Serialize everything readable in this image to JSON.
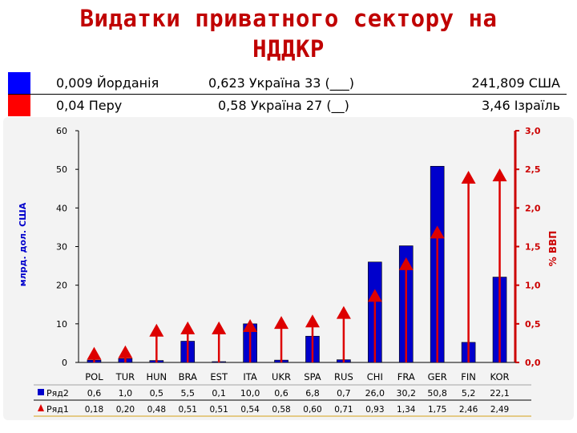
{
  "header": {
    "title_line1": "Видатки приватного сектору на",
    "title_line2": "НДДКР",
    "row1": {
      "left": "0,009 Йорданія",
      "mid": "0,623 Україна 33 (___)",
      "right": "241,809 США",
      "swatch_color": "#0000ff"
    },
    "row2": {
      "left": "0,04 Перу",
      "mid": "0,58 Україна 27 (__)",
      "right": "3,46 Ізраїль",
      "swatch_color": "#ff0000"
    }
  },
  "chart_data": {
    "type": "bar",
    "categories": [
      "POL",
      "TUR",
      "HUN",
      "BRA",
      "EST",
      "ITA",
      "UKR",
      "SPA",
      "RUS",
      "CHI",
      "FRA",
      "GER",
      "FIN",
      "KOR"
    ],
    "ylabel": "млрд. дол. США",
    "y2label": "% ВВП",
    "ylim": [
      0,
      60
    ],
    "y2lim": [
      0,
      3
    ],
    "yticks": [
      "0",
      "10",
      "20",
      "30",
      "40",
      "50",
      "60"
    ],
    "y2ticks": [
      "0,0",
      "0,5",
      "1,0",
      "1,5",
      "2,0",
      "2,5",
      "3,0"
    ],
    "series": [
      {
        "name": "Ряд2",
        "kind": "bar",
        "axis": "left",
        "color": "#0000cc",
        "values": [
          0.6,
          1.0,
          0.5,
          5.5,
          0.1,
          10.0,
          0.6,
          6.8,
          0.7,
          26.0,
          30.2,
          50.8,
          5.2,
          22.1
        ],
        "labels": [
          "0,6",
          "1,0",
          "0,5",
          "5,5",
          "0,1",
          "10,0",
          "0,6",
          "6,8",
          "0,7",
          "26,0",
          "30,2",
          "50,8",
          "5,2",
          "22,1"
        ]
      },
      {
        "name": "Ряд1",
        "kind": "arrow",
        "axis": "right",
        "color": "#dd0000",
        "values": [
          0.18,
          0.2,
          0.48,
          0.51,
          0.51,
          0.54,
          0.58,
          0.6,
          0.71,
          0.93,
          1.34,
          1.75,
          2.46,
          2.49
        ],
        "labels": [
          "0,18",
          "0,20",
          "0,48",
          "0,51",
          "0,51",
          "0,54",
          "0,58",
          "0,60",
          "0,71",
          "0,93",
          "1,34",
          "1,75",
          "2,46",
          "2,49"
        ]
      }
    ],
    "grid": false,
    "legend": "table-bottom"
  }
}
